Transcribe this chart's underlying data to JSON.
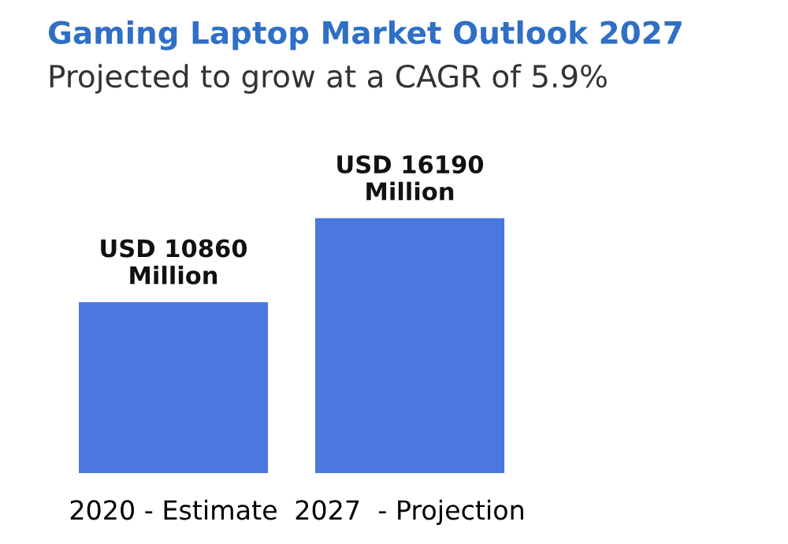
{
  "chart_data": {
    "type": "bar",
    "title": "Gaming Laptop Market Outlook 2027",
    "subtitle": "Projected to grow at a CAGR of 5.9%",
    "categories": [
      "2020 - Estimate",
      "2027  - Projection"
    ],
    "values": [
      10860,
      16190
    ],
    "color": "#4a78e0",
    "value_labels": [
      "USD 10860\nMillion",
      "USD 16190\nMillion"
    ]
  }
}
